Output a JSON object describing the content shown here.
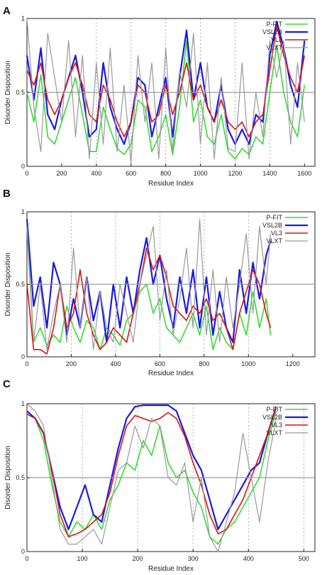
{
  "figure": {
    "panels": [
      {
        "label": "A",
        "xlabel": "Residue Index",
        "ylabel": "Disorder Disposition"
      },
      {
        "label": "B",
        "xlabel": "Residue Index",
        "ylabel": "Disorder Disposition"
      },
      {
        "label": "C",
        "xlabel": "Residue Index",
        "ylabel": "Disorder Disposition"
      }
    ]
  },
  "chart_data": [
    {
      "type": "line",
      "panel": "A",
      "xlabel": "Residue Index",
      "ylabel": "Disorder Disposition",
      "xlim": [
        0,
        1660
      ],
      "ylim": [
        0,
        1
      ],
      "xticks": [
        0,
        200,
        400,
        600,
        800,
        1000,
        1200,
        1400,
        1600
      ],
      "yticks": [
        0,
        0.5,
        1
      ],
      "yticklabels": [
        "0",
        "0.5",
        "1"
      ],
      "vgrid": [
        400,
        600,
        800,
        1000,
        1200,
        1400
      ],
      "threshold": 0.5,
      "legend_position": "top-right",
      "series": [
        {
          "name": "P-FIT",
          "color": "#33dd33",
          "width": 1.6,
          "x": [
            0,
            40,
            80,
            120,
            160,
            200,
            240,
            280,
            320,
            360,
            400,
            440,
            480,
            520,
            560,
            600,
            640,
            680,
            720,
            760,
            800,
            840,
            880,
            920,
            960,
            1000,
            1040,
            1080,
            1120,
            1160,
            1200,
            1240,
            1280,
            1320,
            1360,
            1400,
            1440,
            1480,
            1520,
            1560,
            1600
          ],
          "values": [
            0.5,
            0.3,
            0.62,
            0.2,
            0.15,
            0.3,
            0.45,
            0.6,
            0.35,
            0.1,
            0.1,
            0.4,
            0.25,
            0.12,
            0.08,
            0.15,
            0.45,
            0.4,
            0.1,
            0.2,
            0.35,
            0.08,
            0.4,
            0.85,
            0.3,
            0.45,
            0.2,
            0.15,
            0.35,
            0.1,
            0.05,
            0.12,
            0.08,
            0.2,
            0.15,
            0.5,
            0.82,
            0.5,
            0.3,
            0.2,
            0.55
          ]
        },
        {
          "name": "VSL2B",
          "color": "#1a1ae6",
          "width": 2.2,
          "x": [
            0,
            40,
            80,
            120,
            160,
            200,
            240,
            280,
            320,
            360,
            400,
            440,
            480,
            520,
            560,
            600,
            640,
            680,
            720,
            760,
            800,
            840,
            880,
            920,
            960,
            1000,
            1040,
            1080,
            1120,
            1160,
            1200,
            1240,
            1280,
            1320,
            1360,
            1400,
            1440,
            1480,
            1520,
            1560,
            1600
          ],
          "values": [
            0.75,
            0.45,
            0.8,
            0.35,
            0.25,
            0.45,
            0.6,
            0.75,
            0.5,
            0.2,
            0.25,
            0.7,
            0.4,
            0.25,
            0.15,
            0.3,
            0.6,
            0.55,
            0.2,
            0.4,
            0.6,
            0.2,
            0.6,
            0.92,
            0.45,
            0.7,
            0.4,
            0.3,
            0.55,
            0.25,
            0.15,
            0.25,
            0.15,
            0.35,
            0.3,
            0.75,
            0.98,
            0.8,
            0.55,
            0.4,
            0.85
          ]
        },
        {
          "name": "VL3",
          "color": "#dd1111",
          "width": 1.6,
          "x": [
            0,
            40,
            80,
            120,
            160,
            200,
            240,
            280,
            320,
            360,
            400,
            440,
            480,
            520,
            560,
            600,
            640,
            680,
            720,
            760,
            800,
            840,
            880,
            920,
            960,
            1000,
            1040,
            1080,
            1120,
            1160,
            1200,
            1240,
            1280,
            1320,
            1360,
            1400,
            1440,
            1480,
            1520,
            1560,
            1600
          ],
          "values": [
            0.65,
            0.55,
            0.7,
            0.45,
            0.35,
            0.45,
            0.6,
            0.7,
            0.55,
            0.35,
            0.3,
            0.55,
            0.45,
            0.3,
            0.2,
            0.3,
            0.55,
            0.5,
            0.3,
            0.35,
            0.55,
            0.35,
            0.5,
            0.7,
            0.45,
            0.55,
            0.4,
            0.3,
            0.45,
            0.3,
            0.25,
            0.3,
            0.2,
            0.3,
            0.35,
            0.65,
            0.95,
            0.75,
            0.6,
            0.5,
            0.75
          ]
        },
        {
          "name": "VLXT",
          "color": "#999999",
          "width": 1.2,
          "x": [
            0,
            40,
            80,
            120,
            160,
            200,
            240,
            280,
            320,
            360,
            400,
            440,
            480,
            520,
            560,
            600,
            640,
            680,
            720,
            760,
            800,
            840,
            880,
            920,
            960,
            1000,
            1040,
            1080,
            1120,
            1160,
            1200,
            1240,
            1280,
            1320,
            1360,
            1400,
            1440,
            1480,
            1520,
            1560,
            1600
          ],
          "values": [
            1.0,
            0.4,
            0.1,
            0.9,
            0.6,
            0.3,
            0.85,
            0.2,
            0.75,
            0.05,
            0.7,
            0.15,
            0.8,
            0.1,
            0.55,
            0.02,
            0.75,
            0.3,
            0.7,
            0.05,
            0.8,
            0.1,
            0.65,
            0.4,
            0.9,
            0.15,
            0.7,
            0.05,
            0.6,
            0.12,
            0.1,
            0.7,
            0.05,
            0.5,
            0.2,
            0.85,
            0.6,
            0.85,
            0.15,
            0.7,
            0.3
          ]
        }
      ]
    },
    {
      "type": "line",
      "panel": "B",
      "xlabel": "Residue Index",
      "ylabel": "Disorder Disposition",
      "xlim": [
        0,
        1300
      ],
      "ylim": [
        0,
        1
      ],
      "xticks": [
        0,
        200,
        400,
        600,
        800,
        1000,
        1200
      ],
      "yticks": [
        0,
        0.5,
        1
      ],
      "yticklabels": [
        "0",
        "0.5",
        "1"
      ],
      "vgrid": [
        200,
        400,
        600,
        800,
        1000
      ],
      "threshold": 0.5,
      "legend_position": "top-right",
      "series": [
        {
          "name": "P-FIT",
          "color": "#33dd33",
          "width": 1.6,
          "x": [
            0,
            30,
            60,
            90,
            120,
            150,
            180,
            210,
            240,
            270,
            300,
            330,
            360,
            390,
            420,
            450,
            480,
            510,
            540,
            570,
            600,
            630,
            660,
            690,
            720,
            750,
            780,
            810,
            840,
            870,
            900,
            930,
            960,
            990,
            1020,
            1050,
            1080,
            1100
          ],
          "values": [
            0.9,
            0.1,
            0.2,
            0.08,
            0.15,
            0.1,
            0.35,
            0.2,
            0.1,
            0.25,
            0.2,
            0.05,
            0.2,
            0.15,
            0.08,
            0.25,
            0.3,
            0.45,
            0.5,
            0.3,
            0.4,
            0.2,
            0.15,
            0.1,
            0.2,
            0.3,
            0.15,
            0.35,
            0.05,
            0.2,
            0.1,
            0.05,
            0.3,
            0.15,
            0.45,
            0.2,
            0.4,
            0.15
          ]
        },
        {
          "name": "VSL2B",
          "color": "#1a1ae6",
          "width": 2.2,
          "x": [
            0,
            30,
            60,
            90,
            120,
            150,
            180,
            210,
            240,
            270,
            300,
            330,
            360,
            390,
            420,
            450,
            480,
            510,
            540,
            570,
            600,
            630,
            660,
            690,
            720,
            750,
            780,
            810,
            840,
            870,
            900,
            930,
            960,
            990,
            1020,
            1050,
            1080,
            1100
          ],
          "values": [
            0.95,
            0.35,
            0.55,
            0.2,
            0.65,
            0.5,
            0.15,
            0.4,
            0.2,
            0.55,
            0.25,
            0.45,
            0.1,
            0.5,
            0.2,
            0.55,
            0.3,
            0.6,
            0.82,
            0.5,
            0.7,
            0.4,
            0.2,
            0.55,
            0.3,
            0.6,
            0.2,
            0.55,
            0.15,
            0.45,
            0.2,
            0.1,
            0.6,
            0.3,
            0.65,
            0.4,
            0.7,
            0.8
          ]
        },
        {
          "name": "VL3",
          "color": "#dd1111",
          "width": 1.6,
          "x": [
            0,
            30,
            60,
            90,
            120,
            150,
            180,
            210,
            240,
            270,
            300,
            330,
            360,
            390,
            420,
            450,
            480,
            510,
            540,
            570,
            600,
            630,
            660,
            690,
            720,
            750,
            780,
            810,
            840,
            870,
            900,
            930,
            960,
            990,
            1020,
            1050,
            1080,
            1100
          ],
          "values": [
            0.5,
            0.05,
            0.05,
            0.02,
            0.2,
            0.5,
            0.2,
            0.3,
            0.6,
            0.3,
            0.15,
            0.05,
            0.1,
            0.2,
            0.15,
            0.1,
            0.3,
            0.5,
            0.75,
            0.6,
            0.7,
            0.55,
            0.35,
            0.3,
            0.25,
            0.35,
            0.3,
            0.4,
            0.25,
            0.3,
            0.2,
            0.05,
            0.3,
            0.45,
            0.6,
            0.5,
            0.3,
            0.2
          ]
        },
        {
          "name": "VLXT",
          "color": "#999999",
          "width": 1.2,
          "x": [
            0,
            30,
            60,
            90,
            120,
            150,
            180,
            210,
            240,
            270,
            300,
            330,
            360,
            390,
            420,
            450,
            480,
            510,
            540,
            570,
            600,
            630,
            660,
            690,
            720,
            750,
            780,
            810,
            840,
            870,
            900,
            930,
            960,
            990,
            1020,
            1050,
            1080,
            1100
          ],
          "values": [
            0.9,
            0.1,
            0.5,
            0.05,
            0.3,
            0.5,
            0.1,
            0.75,
            0.2,
            0.55,
            0.05,
            0.45,
            0.2,
            0.1,
            0.5,
            0.3,
            0.1,
            0.5,
            0.7,
            0.9,
            0.25,
            0.6,
            0.15,
            0.4,
            0.75,
            0.2,
            0.95,
            0.15,
            0.6,
            0.1,
            0.55,
            0.2,
            0.5,
            0.85,
            0.3,
            0.9,
            0.5,
            0.85
          ]
        }
      ]
    },
    {
      "type": "line",
      "panel": "C",
      "xlabel": "Residue Index",
      "ylabel": "Disorder Disposition",
      "xlim": [
        0,
        520
      ],
      "ylim": [
        0,
        1
      ],
      "xticks": [
        0,
        100,
        200,
        300,
        400,
        500
      ],
      "yticks": [
        0,
        0.5,
        1
      ],
      "yticklabels": [
        "0",
        "0.5",
        "1"
      ],
      "vgrid": [
        100,
        200,
        300,
        400,
        500
      ],
      "threshold": 0.5,
      "legend_position": "top-right",
      "series": [
        {
          "name": "P-FIT",
          "color": "#33dd33",
          "width": 1.6,
          "x": [
            0,
            15,
            30,
            45,
            60,
            75,
            90,
            105,
            120,
            135,
            150,
            165,
            180,
            195,
            210,
            225,
            240,
            255,
            270,
            285,
            300,
            315,
            330,
            345,
            360,
            375,
            390,
            405,
            420,
            435,
            450
          ],
          "values": [
            0.95,
            0.9,
            0.75,
            0.45,
            0.2,
            0.1,
            0.2,
            0.15,
            0.25,
            0.15,
            0.35,
            0.45,
            0.6,
            0.55,
            0.75,
            0.65,
            0.85,
            0.6,
            0.5,
            0.55,
            0.4,
            0.3,
            0.1,
            0.05,
            0.15,
            0.2,
            0.3,
            0.4,
            0.5,
            0.75,
            0.95
          ]
        },
        {
          "name": "VSL2B",
          "color": "#1a1ae6",
          "width": 2.2,
          "x": [
            0,
            15,
            30,
            45,
            60,
            75,
            90,
            105,
            120,
            135,
            150,
            165,
            180,
            195,
            210,
            225,
            240,
            255,
            270,
            285,
            300,
            315,
            330,
            345,
            360,
            375,
            390,
            405,
            420,
            435,
            450
          ],
          "values": [
            0.95,
            0.9,
            0.8,
            0.55,
            0.3,
            0.15,
            0.3,
            0.45,
            0.25,
            0.2,
            0.45,
            0.7,
            0.9,
            0.98,
            0.99,
            0.99,
            0.99,
            0.99,
            0.95,
            0.8,
            0.65,
            0.55,
            0.35,
            0.15,
            0.25,
            0.35,
            0.45,
            0.55,
            0.6,
            0.8,
            0.98
          ]
        },
        {
          "name": "VL3",
          "color": "#dd1111",
          "width": 1.6,
          "x": [
            0,
            15,
            30,
            45,
            60,
            75,
            90,
            105,
            120,
            135,
            150,
            165,
            180,
            195,
            210,
            225,
            240,
            255,
            270,
            285,
            300,
            315,
            330,
            345,
            360,
            375,
            390,
            405,
            420,
            435,
            450
          ],
          "values": [
            0.93,
            0.9,
            0.8,
            0.55,
            0.25,
            0.1,
            0.12,
            0.15,
            0.2,
            0.25,
            0.4,
            0.65,
            0.85,
            0.92,
            0.9,
            0.88,
            0.9,
            0.94,
            0.9,
            0.78,
            0.6,
            0.45,
            0.25,
            0.12,
            0.15,
            0.25,
            0.35,
            0.5,
            0.65,
            0.8,
            0.98
          ]
        },
        {
          "name": "VLXT",
          "color": "#999999",
          "width": 1.2,
          "x": [
            0,
            15,
            30,
            45,
            60,
            75,
            90,
            105,
            120,
            135,
            150,
            165,
            180,
            195,
            210,
            225,
            240,
            255,
            270,
            285,
            300,
            315,
            330,
            345,
            360,
            375,
            390,
            405,
            420,
            435,
            450
          ],
          "values": [
            1.0,
            0.95,
            0.85,
            0.5,
            0.15,
            0.05,
            0.05,
            0.1,
            0.15,
            0.05,
            0.3,
            0.55,
            0.6,
            0.85,
            0.7,
            0.9,
            0.85,
            0.5,
            0.45,
            0.6,
            0.2,
            0.5,
            0.1,
            0.0,
            0.2,
            0.4,
            0.8,
            0.5,
            0.2,
            0.6,
            0.9
          ]
        }
      ]
    }
  ]
}
